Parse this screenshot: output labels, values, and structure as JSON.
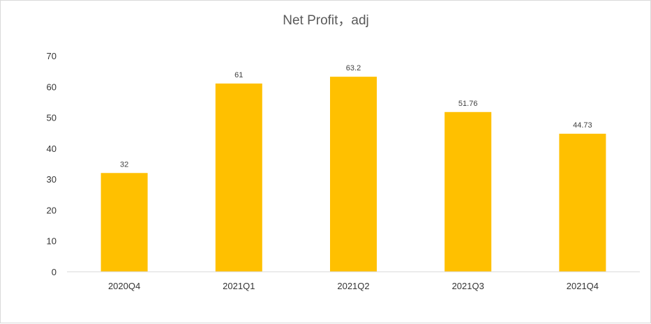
{
  "chart_data": {
    "type": "bar",
    "title": "Net Profit，adj",
    "categories": [
      "2020Q4",
      "2021Q1",
      "2021Q2",
      "2021Q3",
      "2021Q4"
    ],
    "values": [
      32,
      61,
      63.2,
      51.76,
      44.73
    ],
    "data_labels": [
      "32",
      "61",
      "63.2",
      "51.76",
      "44.73"
    ],
    "yticks": [
      "0",
      "10",
      "20",
      "30",
      "40",
      "50",
      "60",
      "70"
    ],
    "ylim": [
      0,
      70
    ],
    "grid": false,
    "legend": "none",
    "bar_color": "#FFC000"
  }
}
